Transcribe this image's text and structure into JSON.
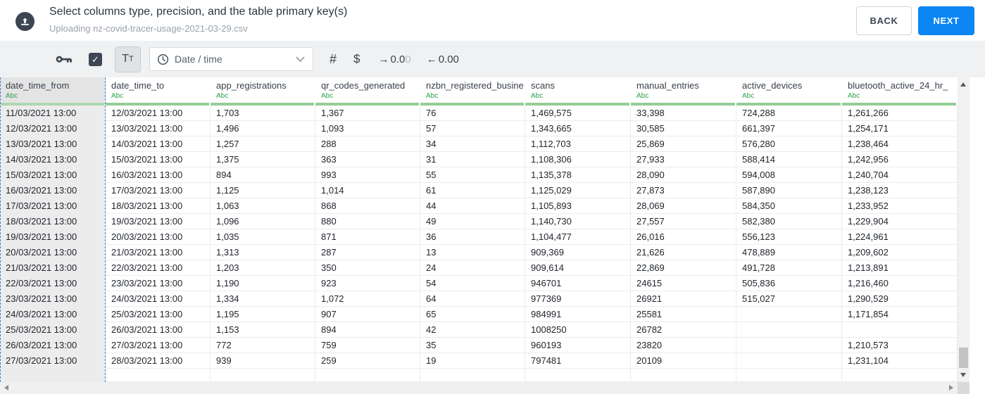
{
  "header": {
    "title": "Select columns type, precision, and the table primary key(s)",
    "subtitle": "Uploading nz-covid-tracer-usage-2021-03-29.csv",
    "back_label": "BACK",
    "next_label": "NEXT"
  },
  "toolbar": {
    "text_type_main": "T",
    "text_type_small": "T",
    "type_dropdown_value": "Date / time",
    "numeric_label": "#",
    "currency_label": "$",
    "increase_decimal": {
      "arrow": "→",
      "value_dark": "0.0",
      "value_light": "0"
    },
    "decrease_decimal": {
      "arrow": "←",
      "value": "0.00"
    }
  },
  "icons": {
    "upload": "cloud-upload-icon",
    "key": "primary-key-icon",
    "checkbox": "include-column-checkbox",
    "clock": "date-time-icon",
    "chevron": "chevron-down-icon"
  },
  "colors": {
    "accent_blue": "#0c86f5",
    "type_green": "#2da04d",
    "header_underline_green": "#94cd96",
    "selection_dashed_blue": "#3c7fdb",
    "dark_slate": "#3d4653"
  },
  "table": {
    "type_label": "Abc",
    "columns": [
      {
        "name": "date_time_from",
        "selected": true
      },
      {
        "name": "date_time_to",
        "selected": false
      },
      {
        "name": "app_registrations",
        "selected": false
      },
      {
        "name": "qr_codes_generated",
        "selected": false
      },
      {
        "name": "nzbn_registered_busine",
        "selected": false
      },
      {
        "name": "scans",
        "selected": false
      },
      {
        "name": "manual_entries",
        "selected": false
      },
      {
        "name": "active_devices",
        "selected": false
      },
      {
        "name": "bluetooth_active_24_hr_",
        "selected": false
      }
    ],
    "rows": [
      [
        "11/03/2021 13:00",
        "12/03/2021 13:00",
        "1,703",
        "1,367",
        "76",
        "1,469,575",
        "33,398",
        "724,288",
        "1,261,266"
      ],
      [
        "12/03/2021 13:00",
        "13/03/2021 13:00",
        "1,496",
        "1,093",
        "57",
        "1,343,665",
        "30,585",
        "661,397",
        "1,254,171"
      ],
      [
        "13/03/2021 13:00",
        "14/03/2021 13:00",
        "1,257",
        "288",
        "34",
        "1,112,703",
        "25,869",
        "576,280",
        "1,238,464"
      ],
      [
        "14/03/2021 13:00",
        "15/03/2021 13:00",
        "1,375",
        "363",
        "31",
        "1,108,306",
        "27,933",
        "588,414",
        "1,242,956"
      ],
      [
        "15/03/2021 13:00",
        "16/03/2021 13:00",
        "894",
        "993",
        "55",
        "1,135,378",
        "28,090",
        "594,008",
        "1,240,704"
      ],
      [
        "16/03/2021 13:00",
        "17/03/2021 13:00",
        "1,125",
        "1,014",
        "61",
        "1,125,029",
        "27,873",
        "587,890",
        "1,238,123"
      ],
      [
        "17/03/2021 13:00",
        "18/03/2021 13:00",
        "1,063",
        "868",
        "44",
        "1,105,893",
        "28,069",
        "584,350",
        "1,233,952"
      ],
      [
        "18/03/2021 13:00",
        "19/03/2021 13:00",
        "1,096",
        "880",
        "49",
        "1,140,730",
        "27,557",
        "582,380",
        "1,229,904"
      ],
      [
        "19/03/2021 13:00",
        "20/03/2021 13:00",
        "1,035",
        "871",
        "36",
        "1,104,477",
        "26,016",
        "556,123",
        "1,224,961"
      ],
      [
        "20/03/2021 13:00",
        "21/03/2021 13:00",
        "1,313",
        "287",
        "13",
        "909,369",
        "21,626",
        "478,889",
        "1,209,602"
      ],
      [
        "21/03/2021 13:00",
        "22/03/2021 13:00",
        "1,203",
        "350",
        "24",
        "909,614",
        "22,869",
        "491,728",
        "1,213,891"
      ],
      [
        "22/03/2021 13:00",
        "23/03/2021 13:00",
        "1,190",
        "923",
        "54",
        "946701",
        "24615",
        "505,836",
        "1,216,460"
      ],
      [
        "23/03/2021 13:00",
        "24/03/2021 13:00",
        "1,334",
        "1,072",
        "64",
        "977369",
        "26921",
        "515,027",
        "1,290,529"
      ],
      [
        "24/03/2021 13:00",
        "25/03/2021 13:00",
        "1,195",
        "907",
        "65",
        "984991",
        "25581",
        "",
        "1,171,854"
      ],
      [
        "25/03/2021 13:00",
        "26/03/2021 13:00",
        "1,153",
        "894",
        "42",
        "1008250",
        "26782",
        "",
        ""
      ],
      [
        "26/03/2021 13:00",
        "27/03/2021 13:00",
        "772",
        "759",
        "35",
        "960193",
        "23820",
        "",
        "1,210,573"
      ],
      [
        "27/03/2021 13:00",
        "28/03/2021 13:00",
        "939",
        "259",
        "19",
        "797481",
        "20109",
        "",
        "1,231,104"
      ]
    ]
  }
}
